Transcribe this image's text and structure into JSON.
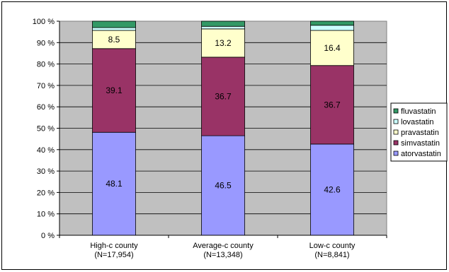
{
  "chart_data": {
    "type": "bar",
    "stacked": true,
    "percent": true,
    "categories": [
      [
        "High-c county",
        "(N=17,954)"
      ],
      [
        "Average-c county",
        "(N=13,348)"
      ],
      [
        "Low-c county",
        "(N=8,841)"
      ]
    ],
    "series": [
      {
        "name": "atorvastatin",
        "color": "#9999ff",
        "values": [
          48.1,
          46.5,
          42.6
        ],
        "labels": [
          "48.1",
          "46.5",
          "42.6"
        ]
      },
      {
        "name": "simvastatin",
        "color": "#993366",
        "values": [
          39.1,
          36.7,
          36.7
        ],
        "labels": [
          "39.1",
          "36.7",
          "36.7"
        ]
      },
      {
        "name": "pravastatin",
        "color": "#ffffcc",
        "values": [
          8.5,
          13.2,
          16.4
        ],
        "labels": [
          "8.5",
          "13.2",
          "16.4"
        ]
      },
      {
        "name": "lovastatin",
        "color": "#ccffff",
        "values": [
          1.3,
          1.2,
          2.4
        ],
        "labels": [
          "",
          "",
          ""
        ]
      },
      {
        "name": "fluvastatin",
        "color": "#339966",
        "values": [
          3.0,
          2.4,
          1.9
        ],
        "labels": [
          "",
          "",
          ""
        ]
      }
    ],
    "legend_order": [
      "fluvastatin",
      "lovastatin",
      "pravastatin",
      "simvastatin",
      "atorvastatin"
    ],
    "y_ticks": [
      "0 %",
      "10 %",
      "20 %",
      "30 %",
      "40 %",
      "50 %",
      "60 %",
      "70 %",
      "80 %",
      "90 %",
      "100 %"
    ],
    "ylim": [
      0,
      100
    ],
    "plot_background": "#c0c0c0",
    "grid": true,
    "legend_position": "right"
  }
}
